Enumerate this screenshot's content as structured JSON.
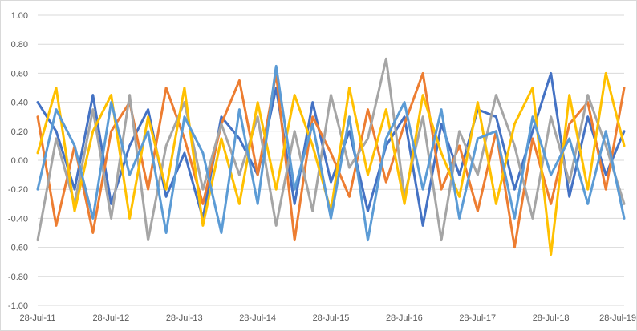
{
  "chart_data": {
    "type": "line",
    "title": "",
    "xlabel": "",
    "ylabel": "",
    "ylim": [
      -1.0,
      1.0
    ],
    "y_ticks": [
      "1.00",
      "0.80",
      "0.60",
      "0.40",
      "0.20",
      "0.00",
      "-0.20",
      "-0.40",
      "-0.60",
      "-0.80",
      "-1.00"
    ],
    "y_tick_values": [
      1.0,
      0.8,
      0.6,
      0.4,
      0.2,
      0.0,
      -0.2,
      -0.4,
      -0.6,
      -0.8,
      -1.0
    ],
    "x_ticks": [
      "28-Jul-11",
      "28-Jul-12",
      "28-Jul-13",
      "28-Jul-14",
      "28-Jul-15",
      "28-Jul-16",
      "28-Jul-17",
      "28-Jul-18",
      "28-Jul-19"
    ],
    "x_range": [
      "2011-07-28",
      "2019-07-28"
    ],
    "grid": "horizontal",
    "legend": "none",
    "series": [
      {
        "color": "#4472c4",
        "x": [
          "2011-07-28",
          "2011-10-28",
          "2012-01-28",
          "2012-04-28",
          "2012-07-28",
          "2012-10-28",
          "2013-01-28",
          "2013-04-28",
          "2013-07-28",
          "2013-10-28",
          "2014-01-28",
          "2014-04-28",
          "2014-07-28",
          "2014-10-28",
          "2015-01-28",
          "2015-04-28",
          "2015-07-28",
          "2015-10-28",
          "2016-01-28",
          "2016-04-28",
          "2016-07-28",
          "2016-10-28",
          "2017-01-28",
          "2017-04-28",
          "2017-07-28",
          "2017-10-28",
          "2018-01-28",
          "2018-04-28",
          "2018-07-28",
          "2018-10-28",
          "2019-01-28",
          "2019-04-28",
          "2019-07-28"
        ],
        "values": [
          0.4,
          0.2,
          -0.2,
          0.45,
          -0.3,
          0.1,
          0.35,
          -0.25,
          0.05,
          -0.4,
          0.3,
          0.15,
          -0.1,
          0.5,
          -0.3,
          0.4,
          -0.15,
          0.2,
          -0.35,
          0.1,
          0.3,
          -0.45,
          0.25,
          -0.1,
          0.35,
          0.3,
          -0.2,
          0.2,
          0.6,
          -0.25,
          0.3,
          -0.1,
          0.2
        ]
      },
      {
        "color": "#ed7d31",
        "x": [
          "2011-07-28",
          "2011-10-28",
          "2012-01-28",
          "2012-04-28",
          "2012-07-28",
          "2012-10-28",
          "2013-01-28",
          "2013-04-28",
          "2013-07-28",
          "2013-10-28",
          "2014-01-28",
          "2014-04-28",
          "2014-07-28",
          "2014-10-28",
          "2015-01-28",
          "2015-04-28",
          "2015-07-28",
          "2015-10-28",
          "2016-01-28",
          "2016-04-28",
          "2016-07-28",
          "2016-10-28",
          "2017-01-28",
          "2017-04-28",
          "2017-07-28",
          "2017-10-28",
          "2018-01-28",
          "2018-04-28",
          "2018-07-28",
          "2018-10-28",
          "2019-01-28",
          "2019-04-28",
          "2019-07-28"
        ],
        "values": [
          0.3,
          -0.45,
          0.1,
          -0.5,
          0.2,
          0.4,
          -0.2,
          0.5,
          0.15,
          -0.3,
          0.25,
          0.55,
          -0.1,
          0.6,
          -0.55,
          0.3,
          0.05,
          -0.25,
          0.35,
          -0.15,
          0.25,
          0.6,
          -0.2,
          0.1,
          -0.35,
          0.2,
          -0.6,
          0.15,
          -0.3,
          0.25,
          0.4,
          -0.2,
          0.5
        ]
      },
      {
        "color": "#a5a5a5",
        "x": [
          "2011-07-28",
          "2011-10-28",
          "2012-01-28",
          "2012-04-28",
          "2012-07-28",
          "2012-10-28",
          "2013-01-28",
          "2013-04-28",
          "2013-07-28",
          "2013-10-28",
          "2014-01-28",
          "2014-04-28",
          "2014-07-28",
          "2014-10-28",
          "2015-01-28",
          "2015-04-28",
          "2015-07-28",
          "2015-10-28",
          "2016-01-28",
          "2016-04-28",
          "2016-07-28",
          "2016-10-28",
          "2017-01-28",
          "2017-04-28",
          "2017-07-28",
          "2017-10-28",
          "2018-01-28",
          "2018-04-28",
          "2018-07-28",
          "2018-10-28",
          "2019-01-28",
          "2019-04-28",
          "2019-07-28"
        ],
        "values": [
          -0.55,
          0.15,
          -0.3,
          0.35,
          -0.4,
          0.45,
          -0.55,
          0.1,
          0.4,
          -0.2,
          0.25,
          -0.1,
          0.3,
          -0.45,
          0.2,
          -0.35,
          0.45,
          -0.05,
          0.15,
          0.7,
          -0.25,
          0.3,
          -0.55,
          0.2,
          -0.1,
          0.45,
          0.1,
          -0.4,
          0.3,
          -0.15,
          0.45,
          0.1,
          -0.3
        ]
      },
      {
        "color": "#ffc000",
        "x": [
          "2011-07-28",
          "2011-10-28",
          "2012-01-28",
          "2012-04-28",
          "2012-07-28",
          "2012-10-28",
          "2013-01-28",
          "2013-04-28",
          "2013-07-28",
          "2013-10-28",
          "2014-01-28",
          "2014-04-28",
          "2014-07-28",
          "2014-10-28",
          "2015-01-28",
          "2015-04-28",
          "2015-07-28",
          "2015-10-28",
          "2016-01-28",
          "2016-04-28",
          "2016-07-28",
          "2016-10-28",
          "2017-01-28",
          "2017-04-28",
          "2017-07-28",
          "2017-10-28",
          "2018-01-28",
          "2018-04-28",
          "2018-07-28",
          "2018-10-28",
          "2019-01-28",
          "2019-04-28",
          "2019-07-28"
        ],
        "values": [
          0.05,
          0.5,
          -0.35,
          0.2,
          0.45,
          -0.4,
          0.3,
          -0.2,
          0.5,
          -0.45,
          0.15,
          -0.3,
          0.4,
          -0.2,
          0.45,
          0.1,
          -0.35,
          0.5,
          -0.1,
          0.35,
          -0.3,
          0.45,
          0.05,
          -0.25,
          0.4,
          -0.3,
          0.25,
          0.5,
          -0.65,
          0.45,
          -0.2,
          0.6,
          0.1
        ]
      },
      {
        "color": "#5b9bd5",
        "x": [
          "2011-07-28",
          "2011-10-28",
          "2012-01-28",
          "2012-04-28",
          "2012-07-28",
          "2012-10-28",
          "2013-01-28",
          "2013-04-28",
          "2013-07-28",
          "2013-10-28",
          "2014-01-28",
          "2014-04-28",
          "2014-07-28",
          "2014-10-28",
          "2015-01-28",
          "2015-04-28",
          "2015-07-28",
          "2015-10-28",
          "2016-01-28",
          "2016-04-28",
          "2016-07-28",
          "2016-10-28",
          "2017-01-28",
          "2017-04-28",
          "2017-07-28",
          "2017-10-28",
          "2018-01-28",
          "2018-04-28",
          "2018-07-28",
          "2018-10-28",
          "2019-01-28",
          "2019-04-28",
          "2019-07-28"
        ],
        "values": [
          -0.2,
          0.35,
          0.1,
          -0.4,
          0.4,
          -0.1,
          0.2,
          -0.5,
          0.3,
          0.05,
          -0.5,
          0.35,
          -0.3,
          0.65,
          -0.2,
          0.25,
          -0.4,
          0.3,
          -0.55,
          0.15,
          0.4,
          -0.2,
          0.35,
          -0.4,
          0.15,
          0.2,
          -0.4,
          0.3,
          -0.1,
          0.15,
          -0.3,
          0.2,
          -0.4
        ]
      }
    ]
  }
}
